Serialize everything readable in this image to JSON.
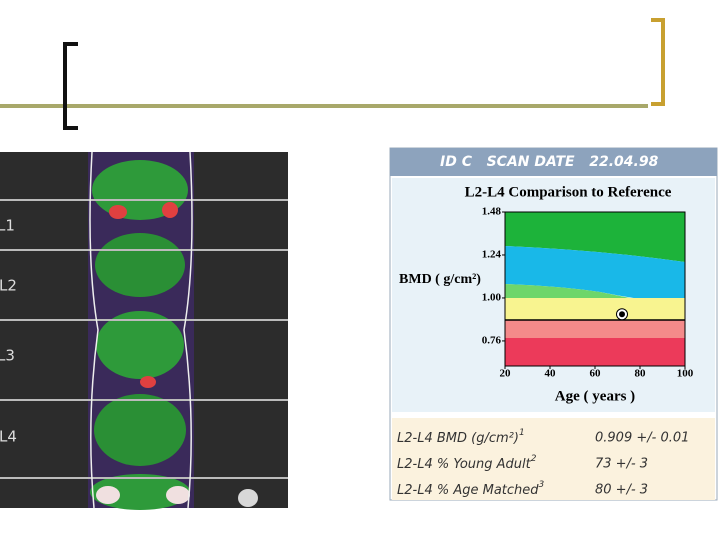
{
  "scan": {
    "labels": [
      "L1",
      "L2",
      "L3",
      "L4"
    ]
  },
  "report": {
    "header": "ID C   SCAN DATE   22.04.98",
    "rows": [
      {
        "label": "L2-L4 BMD (g/cm²)",
        "note": "1",
        "value": "0.909 +/- 0.01"
      },
      {
        "label": "L2-L4 % Young Adult",
        "note": "2",
        "value": "73 +/- 3"
      },
      {
        "label": "L2-L4 % Age Matched",
        "note": "3",
        "value": "80 +/- 3"
      }
    ]
  },
  "chart_data": {
    "type": "scatter",
    "title": "L2-L4 Comparison to Reference",
    "y_label": "BMD ( g/cm²)",
    "x_label": "Age ( years )",
    "x": [
      72
    ],
    "values": [
      0.909
    ],
    "color": "#000000",
    "xlim": [
      20,
      100
    ],
    "xticks": [
      20,
      40,
      60,
      80,
      100
    ],
    "ylim": [
      0.62,
      1.48
    ],
    "yticks": [
      0.76,
      {
        "value": 1.0,
        "label": "1.00"
      },
      1.24,
      1.48
    ]
  }
}
